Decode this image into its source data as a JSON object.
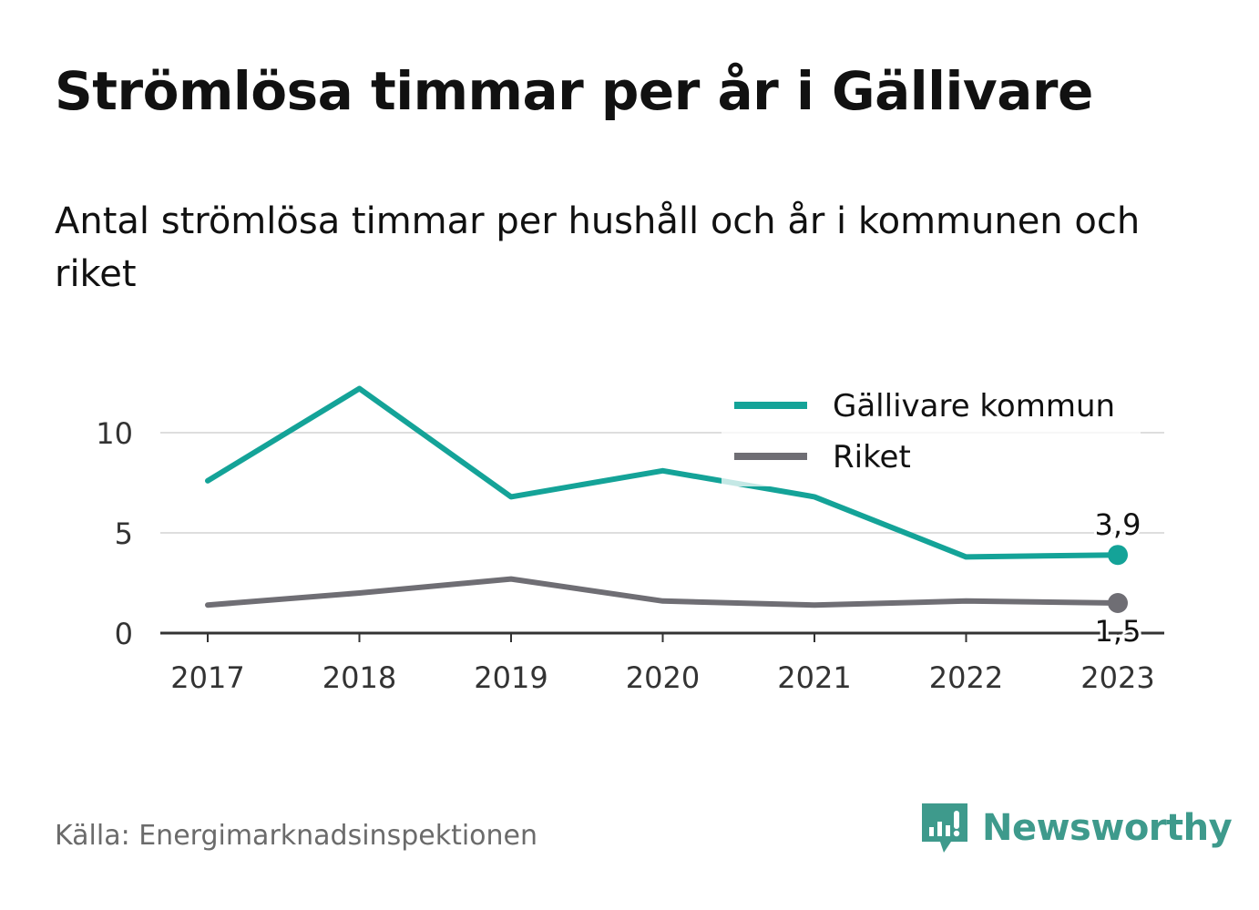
{
  "title": "Strömlösa timmar per år i Gällivare",
  "subtitle": "Antal strömlösa timmar per hushåll och år i kommunen och riket",
  "source": "Källa: Energimarknadsinspektionen",
  "brand": {
    "name": "Newsworthy",
    "icon": "newsworthy-logo-icon",
    "color": "#3e9a8c"
  },
  "chart_data": {
    "type": "line",
    "x": [
      "2017",
      "2018",
      "2019",
      "2020",
      "2021",
      "2022",
      "2023"
    ],
    "series": [
      {
        "name": "Gällivare kommun",
        "color": "#14a398",
        "values": [
          7.6,
          12.2,
          6.8,
          8.1,
          6.8,
          3.8,
          3.9
        ],
        "end_label": "3,9"
      },
      {
        "name": "Riket",
        "color": "#6f6e74",
        "values": [
          1.4,
          2.0,
          2.7,
          1.6,
          1.4,
          1.6,
          1.5
        ],
        "end_label": "1,5"
      }
    ],
    "yticks": [
      0,
      5,
      10
    ],
    "ytick_labels": [
      "0",
      "5",
      "10"
    ],
    "ylim": [
      0,
      12.5
    ],
    "grid": true,
    "legend": "top-right"
  }
}
